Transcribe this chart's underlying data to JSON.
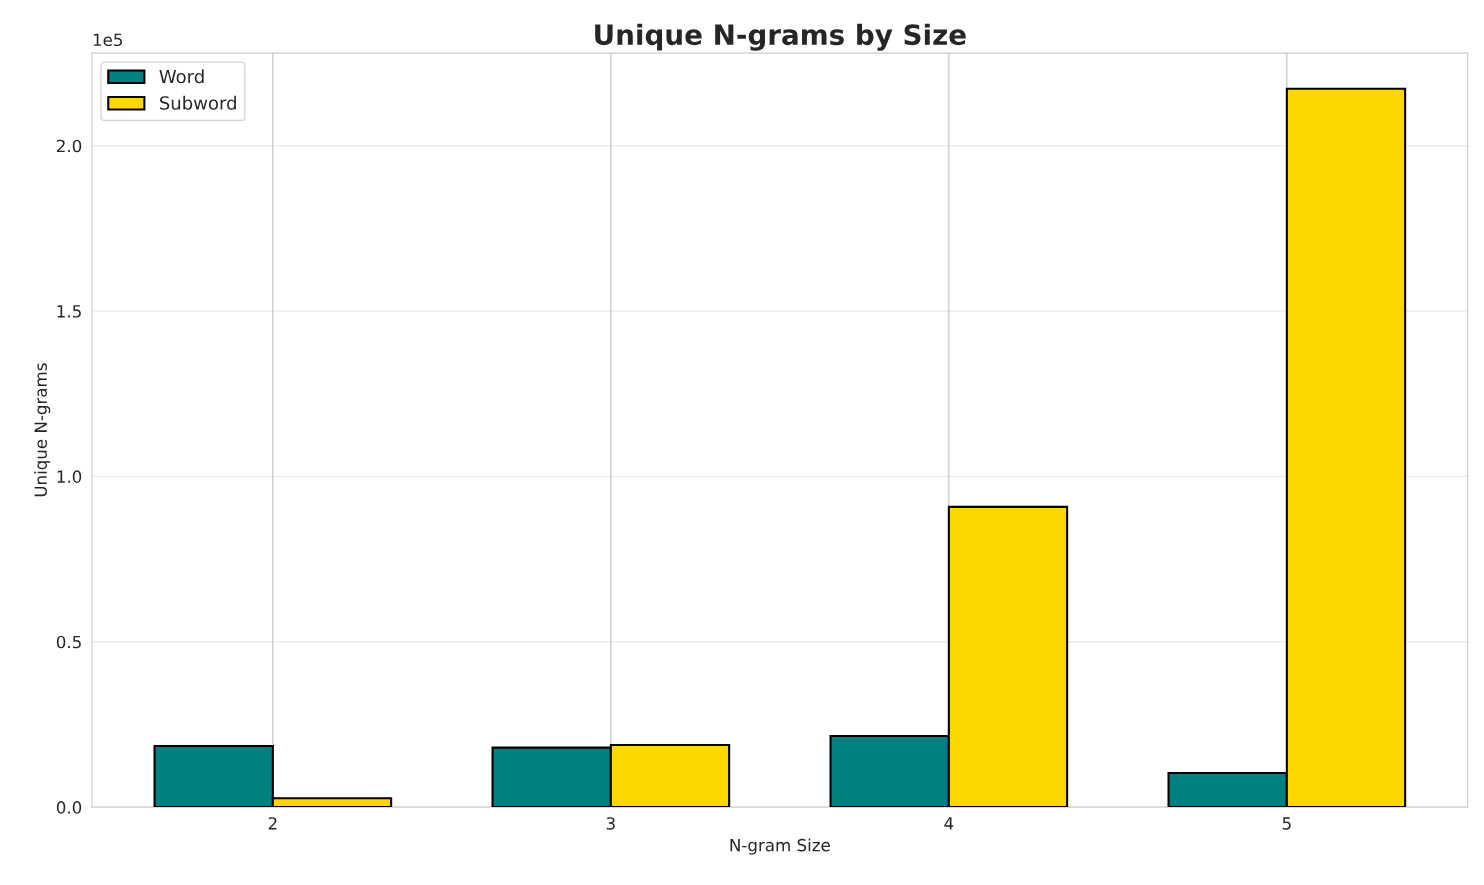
{
  "chart_data": {
    "type": "bar",
    "title": "Unique N-grams by Size",
    "xlabel": "N-gram Size",
    "ylabel": "Unique N-grams",
    "categories": [
      "2",
      "3",
      "4",
      "5"
    ],
    "series": [
      {
        "name": "Word",
        "color": "#008080",
        "values": [
          0.185,
          0.18,
          0.215,
          0.103
        ]
      },
      {
        "name": "Subword",
        "color": "#ffd700",
        "values": [
          0.027,
          0.188,
          0.908,
          2.172
        ]
      }
    ],
    "ylim": [
      0,
      2.28
    ],
    "yticks": [
      {
        "value": 0,
        "label": "0.0"
      },
      0.5,
      {
        "value": 1,
        "label": "1.0"
      },
      1.5,
      {
        "value": 2,
        "label": "2.0"
      }
    ],
    "annotations": [
      "1e5"
    ],
    "grid": true,
    "legend": "top left"
  }
}
